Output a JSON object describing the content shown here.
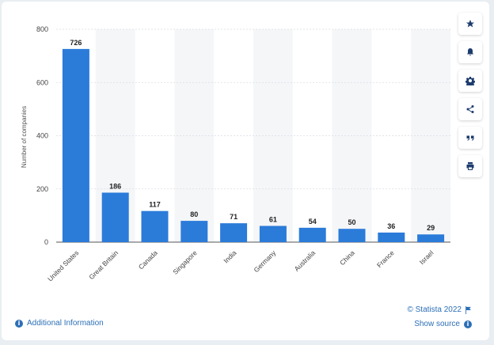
{
  "chart_data": {
    "type": "bar",
    "ylabel": "Number of companies",
    "xlabel": "",
    "ylim": [
      0,
      800
    ],
    "yticks": [
      0,
      200,
      400,
      600,
      800
    ],
    "grid": true,
    "categories": [
      "United States",
      "Great Britain",
      "Canada",
      "Singapore",
      "India",
      "Germany",
      "Australia",
      "China",
      "France",
      "Israel"
    ],
    "values": [
      726,
      186,
      117,
      80,
      71,
      61,
      54,
      50,
      36,
      29
    ],
    "bar_color": "#2b7bd9"
  },
  "toolbar": {
    "icons": [
      "star-icon",
      "bell-icon",
      "gear-icon",
      "share-icon",
      "quote-icon",
      "print-icon"
    ]
  },
  "footer": {
    "additional_info": "Additional Information",
    "copyright": "© Statista 2022",
    "show_source": "Show source"
  },
  "colors": {
    "accent": "#2c6fb6",
    "bar": "#2b7bd9"
  }
}
